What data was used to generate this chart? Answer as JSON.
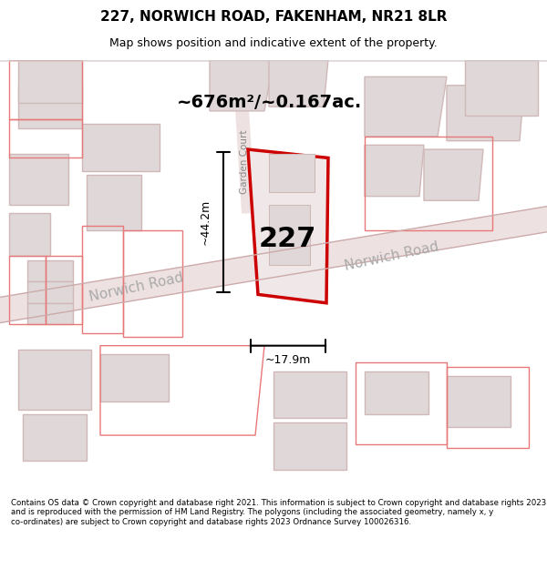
{
  "title": "227, NORWICH ROAD, FAKENHAM, NR21 8LR",
  "subtitle": "Map shows position and indicative extent of the property.",
  "footer": "Contains OS data © Crown copyright and database right 2021. This information is subject to Crown copyright and database rights 2023 and is reproduced with the permission of HM Land Registry. The polygons (including the associated geometry, namely x, y co-ordinates) are subject to Crown copyright and database rights 2023 Ordnance Survey 100026316.",
  "bg_color": "#f5f0f0",
  "map_bg": "#f9f5f5",
  "road_color": "#e8c8c8",
  "building_fill": "#e0d8d8",
  "building_edge": "#d0b8b8",
  "highlight_fill": "#f0e8e8",
  "highlight_edge": "#cc0000",
  "area_text": "~676m²/~0.167ac.",
  "number_text": "227",
  "dim_h": "~44.2m",
  "dim_w": "~17.9m",
  "road_label1": "Norwich Road",
  "road_label2": "Garden Court"
}
